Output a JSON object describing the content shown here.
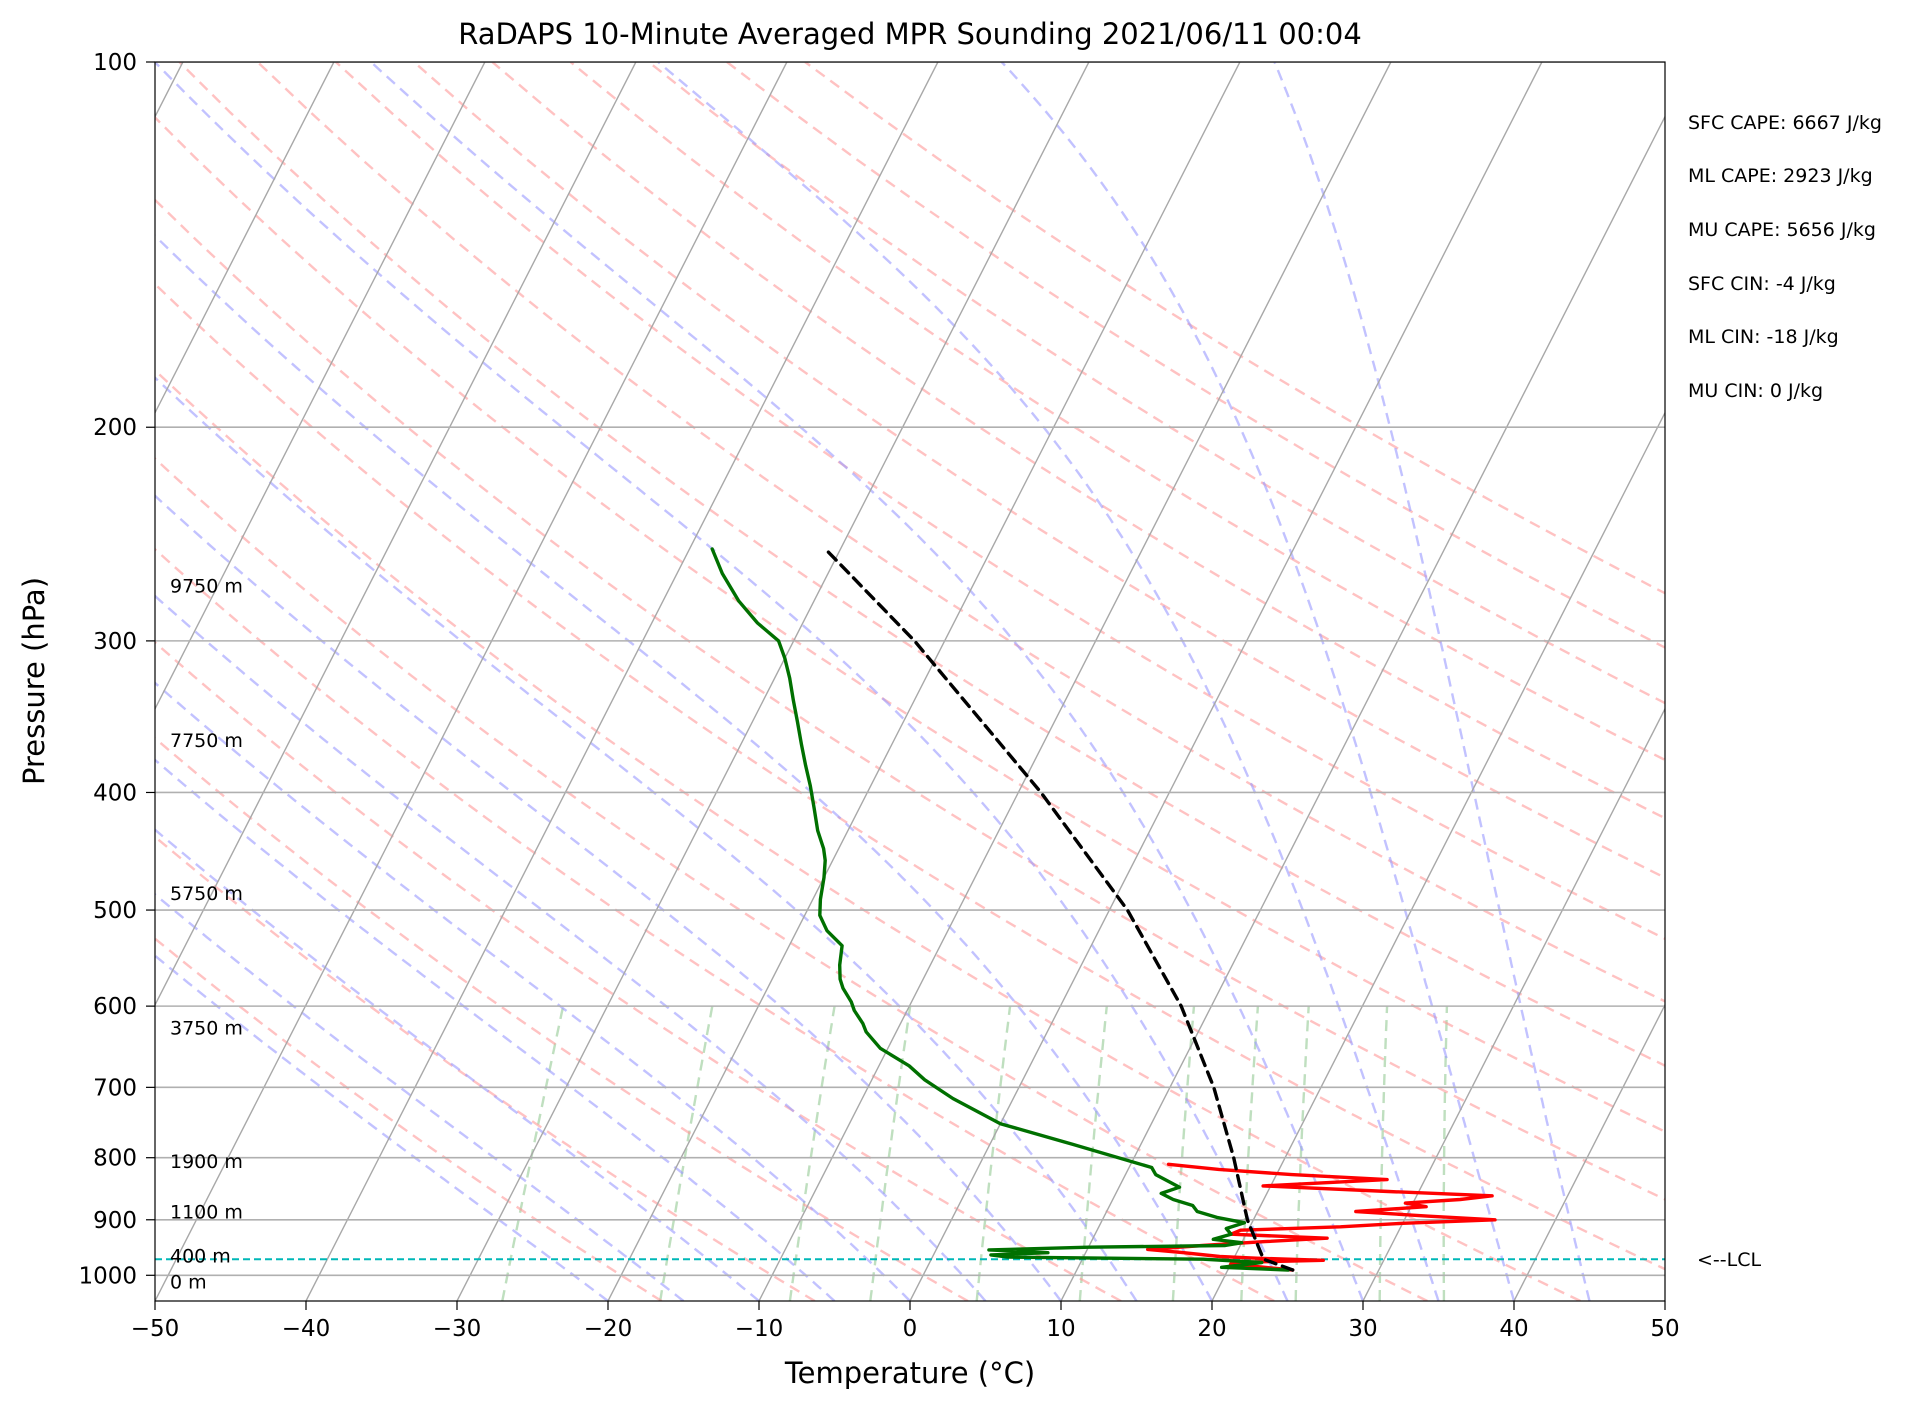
{
  "chart_data": {
    "type": "line",
    "subtype": "skew-t log-p diagram",
    "title": "RaDAPS 10-Minute Averaged MPR Sounding 2021/06/11 00:04",
    "xlabel": "Temperature (°C)",
    "ylabel": "Pressure (hPa)",
    "xlim": [
      -50,
      50
    ],
    "ylim": [
      1050,
      100
    ],
    "y_scale": "log",
    "x_ticks": [
      "−50",
      "−40",
      "−30",
      "−20",
      "−10",
      "0",
      "10",
      "20",
      "30",
      "40",
      "50"
    ],
    "x_tick_values": [
      -50,
      -40,
      -30,
      -20,
      -10,
      0,
      10,
      20,
      30,
      40,
      50
    ],
    "y_ticks": [
      "100",
      "200",
      "300",
      "400",
      "500",
      "600",
      "700",
      "800",
      "900",
      "1000"
    ],
    "y_tick_values": [
      100,
      200,
      300,
      400,
      500,
      600,
      700,
      800,
      900,
      1000
    ],
    "grid": true,
    "background_lines": {
      "isotherms": {
        "color": "#a8a8a8",
        "style": "solid",
        "values": [
          -120,
          -110,
          -100,
          -90,
          -80,
          -70,
          -60,
          -50,
          -40,
          -30,
          -20,
          -10,
          0,
          10,
          20,
          30,
          40,
          50
        ]
      },
      "dry_adiabats": {
        "color": "#ff9a9a",
        "style": "dashed",
        "values": [
          -20,
          -10,
          0,
          10,
          20,
          30,
          40,
          50,
          60,
          70,
          80,
          90,
          100,
          110,
          120,
          130,
          140,
          150,
          160
        ]
      },
      "moist_adiabats": {
        "color": "#9a9aff",
        "style": "dashed",
        "values": [
          -20,
          -15,
          -10,
          -5,
          0,
          5,
          10,
          15,
          20,
          25,
          30,
          35,
          40,
          45
        ]
      },
      "mixing_ratio_lines": {
        "color": "#80c080",
        "style": "dashed",
        "values": [
          0.4,
          1,
          2,
          3,
          5,
          8,
          12,
          16,
          20,
          28,
          36
        ]
      }
    },
    "series": [
      {
        "color": "#ff0000",
        "points": [
          [
            24.3,
            990
          ],
          [
            22.0,
            984
          ],
          [
            20.0,
            980
          ],
          [
            20.0,
            976
          ],
          [
            26.0,
            972
          ],
          [
            21.5,
            968
          ],
          [
            19.0,
            965
          ],
          [
            16.5,
            958
          ],
          [
            14.0,
            952
          ],
          [
            17.5,
            945
          ],
          [
            21.5,
            938
          ],
          [
            25.5,
            932
          ],
          [
            19.0,
            925
          ],
          [
            19.5,
            918
          ],
          [
            26.0,
            912
          ],
          [
            30.0,
            906
          ],
          [
            36.0,
            900
          ],
          [
            31.5,
            894
          ],
          [
            26.5,
            886
          ],
          [
            31.0,
            878
          ],
          [
            29.5,
            872
          ],
          [
            33.0,
            866
          ],
          [
            35.0,
            860
          ],
          [
            28.0,
            853
          ],
          [
            19.5,
            844
          ],
          [
            27.5,
            834
          ],
          [
            21.0,
            826
          ],
          [
            16.0,
            818
          ],
          [
            12.5,
            810
          ]
        ]
      },
      {
        "color": "#007000",
        "points": [
          [
            24.0,
            990
          ],
          [
            19.5,
            985
          ],
          [
            22.0,
            976
          ],
          [
            18.0,
            970
          ],
          [
            5.0,
            966
          ],
          [
            3.8,
            962
          ],
          [
            7.5,
            958
          ],
          [
            3.5,
            953
          ],
          [
            10.0,
            948
          ],
          [
            19.0,
            945
          ],
          [
            20.0,
            940
          ],
          [
            18.0,
            934
          ],
          [
            19.0,
            925
          ],
          [
            18.5,
            915
          ],
          [
            19.5,
            905
          ],
          [
            17.5,
            896
          ],
          [
            16.0,
            886
          ],
          [
            15.5,
            876
          ],
          [
            14.0,
            866
          ],
          [
            13.0,
            856
          ],
          [
            14.0,
            846
          ],
          [
            13.0,
            836
          ],
          [
            12.0,
            826
          ],
          [
            11.5,
            815
          ],
          [
            5.5,
            780
          ],
          [
            0.0,
            750
          ],
          [
            -4.0,
            715
          ],
          [
            -6.5,
            690
          ],
          [
            -8.0,
            672
          ],
          [
            -10.5,
            650
          ],
          [
            -12.0,
            630
          ],
          [
            -12.5,
            620
          ],
          [
            -13.5,
            605
          ],
          [
            -14.0,
            595
          ],
          [
            -15.0,
            580
          ],
          [
            -15.5,
            570
          ],
          [
            -16.0,
            555
          ],
          [
            -16.5,
            535
          ],
          [
            -18.0,
            520
          ],
          [
            -19.0,
            505
          ],
          [
            -19.5,
            490
          ],
          [
            -20.0,
            470
          ],
          [
            -20.5,
            455
          ],
          [
            -21.0,
            445
          ],
          [
            -22.0,
            430
          ],
          [
            -23.0,
            412
          ],
          [
            -24.0,
            395
          ],
          [
            -25.0,
            380
          ],
          [
            -26.0,
            365
          ],
          [
            -27.0,
            350
          ],
          [
            -28.0,
            336
          ],
          [
            -29.0,
            322
          ],
          [
            -30.0,
            310
          ],
          [
            -31.0,
            300
          ],
          [
            -33.0,
            290
          ],
          [
            -35.0,
            278
          ],
          [
            -37.0,
            264
          ],
          [
            -38.5,
            252
          ]
        ]
      },
      {
        "color": "#000000",
        "style": "dashed",
        "points": [
          [
            24.3,
            990
          ],
          [
            22.0,
            970
          ],
          [
            19.6,
            900
          ],
          [
            16.6,
            800
          ],
          [
            12.9,
            700
          ],
          [
            8.0,
            600
          ],
          [
            1.2,
            500
          ],
          [
            -8.5,
            400
          ],
          [
            -22.0,
            300
          ],
          [
            -31.0,
            252
          ]
        ]
      }
    ],
    "height_labels": [
      {
        "text": "0 m",
        "p": 1012
      },
      {
        "text": "400 m",
        "p": 963
      },
      {
        "text": "1100 m",
        "p": 886
      },
      {
        "text": "1900 m",
        "p": 805
      },
      {
        "text": "3750 m",
        "p": 625
      },
      {
        "text": "5750 m",
        "p": 484
      },
      {
        "text": "7750 m",
        "p": 362
      },
      {
        "text": "9750 m",
        "p": 270
      }
    ],
    "lcl": {
      "pressure": 970,
      "label": "<--LCL",
      "color": "#00b7b7"
    },
    "annotations": [
      "SFC CAPE: 6667 J/kg",
      "ML CAPE: 2923 J/kg",
      "MU CAPE: 5656 J/kg",
      "SFC CIN: -4 J/kg",
      "ML CIN: -18 J/kg",
      "MU CIN: 0 J/kg"
    ]
  }
}
